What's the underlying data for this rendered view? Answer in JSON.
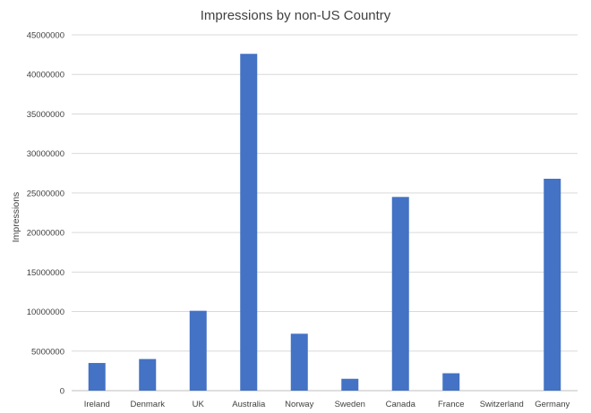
{
  "chart_data": {
    "type": "bar",
    "title": "Impressions by non-US Country",
    "xlabel": "",
    "ylabel": "Impressions",
    "categories": [
      "Ireland",
      "Denmark",
      "UK",
      "Australia",
      "Norway",
      "Sweden",
      "Canada",
      "France",
      "Switzerland",
      "Germany"
    ],
    "values": [
      3500000,
      4000000,
      10100000,
      42600000,
      7200000,
      1500000,
      24500000,
      2200000,
      0,
      26800000
    ],
    "ylim": [
      0,
      45000000
    ],
    "yticks": [
      "0",
      "5000000",
      "10000000",
      "15000000",
      "20000000",
      "25000000",
      "30000000",
      "35000000",
      "40000000",
      "45000000"
    ],
    "grid": true,
    "legend": "none",
    "bar_color": "#4472c4"
  }
}
